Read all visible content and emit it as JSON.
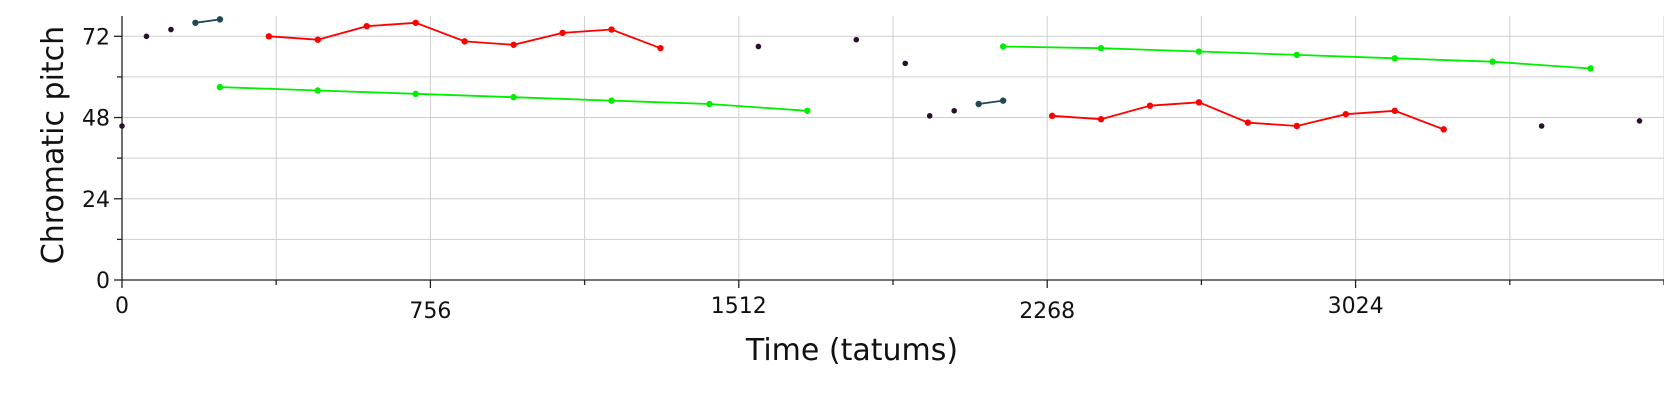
{
  "chart_data": {
    "type": "scatter",
    "title": "",
    "xlabel": "Time (tatums)",
    "ylabel": "Chromatic pitch",
    "xlim": [
      0,
      3780
    ],
    "ylim": [
      0,
      78
    ],
    "x_ticks": [
      0,
      756,
      1512,
      2268,
      3024
    ],
    "x_minor_step": 378,
    "y_ticks": [
      0,
      24,
      48,
      72
    ],
    "y_grid": [
      0,
      12,
      24,
      36,
      48,
      60,
      72
    ],
    "grid": true,
    "colors": {
      "red": "#ff0000",
      "green": "#00ee00",
      "teal": "#1f4a4f",
      "dot": "#2a0f2e"
    },
    "series": [
      {
        "color": "red",
        "lines": true,
        "points": [
          [
            360,
            72
          ],
          [
            480,
            71
          ],
          [
            600,
            75
          ],
          [
            720,
            76
          ],
          [
            840,
            70.5
          ],
          [
            960,
            69.5
          ],
          [
            1080,
            73
          ],
          [
            1200,
            74
          ],
          [
            1320,
            68.5
          ]
        ]
      },
      {
        "color": "green",
        "lines": true,
        "points": [
          [
            240,
            57
          ],
          [
            480,
            56
          ],
          [
            720,
            55
          ],
          [
            960,
            54
          ],
          [
            1200,
            53
          ],
          [
            1440,
            52
          ],
          [
            1680,
            50
          ]
        ]
      },
      {
        "color": "teal",
        "lines": true,
        "points": [
          [
            180,
            76
          ],
          [
            240,
            77
          ]
        ]
      },
      {
        "color": "teal",
        "lines": true,
        "points": [
          [
            2100,
            52
          ],
          [
            2160,
            53
          ]
        ]
      },
      {
        "color": "green",
        "lines": true,
        "points": [
          [
            2160,
            69
          ],
          [
            2400,
            68.5
          ],
          [
            2640,
            67.5
          ],
          [
            2880,
            66.5
          ],
          [
            3120,
            65.5
          ],
          [
            3360,
            64.5
          ],
          [
            3600,
            62.5
          ]
        ]
      },
      {
        "color": "red",
        "lines": true,
        "points": [
          [
            2280,
            48.5
          ],
          [
            2400,
            47.5
          ],
          [
            2520,
            51.5
          ],
          [
            2640,
            52.5
          ],
          [
            2760,
            46.5
          ],
          [
            2880,
            45.5
          ],
          [
            3000,
            49
          ],
          [
            3120,
            50
          ],
          [
            3240,
            44.5
          ]
        ]
      },
      {
        "color": "dot",
        "lines": false,
        "points": [
          [
            0,
            45.5
          ],
          [
            60,
            72
          ],
          [
            120,
            74
          ],
          [
            1560,
            69
          ],
          [
            1800,
            71
          ],
          [
            1920,
            64
          ],
          [
            1980,
            48.5
          ],
          [
            2040,
            50
          ],
          [
            3480,
            45.5
          ],
          [
            3720,
            47
          ]
        ]
      }
    ]
  }
}
